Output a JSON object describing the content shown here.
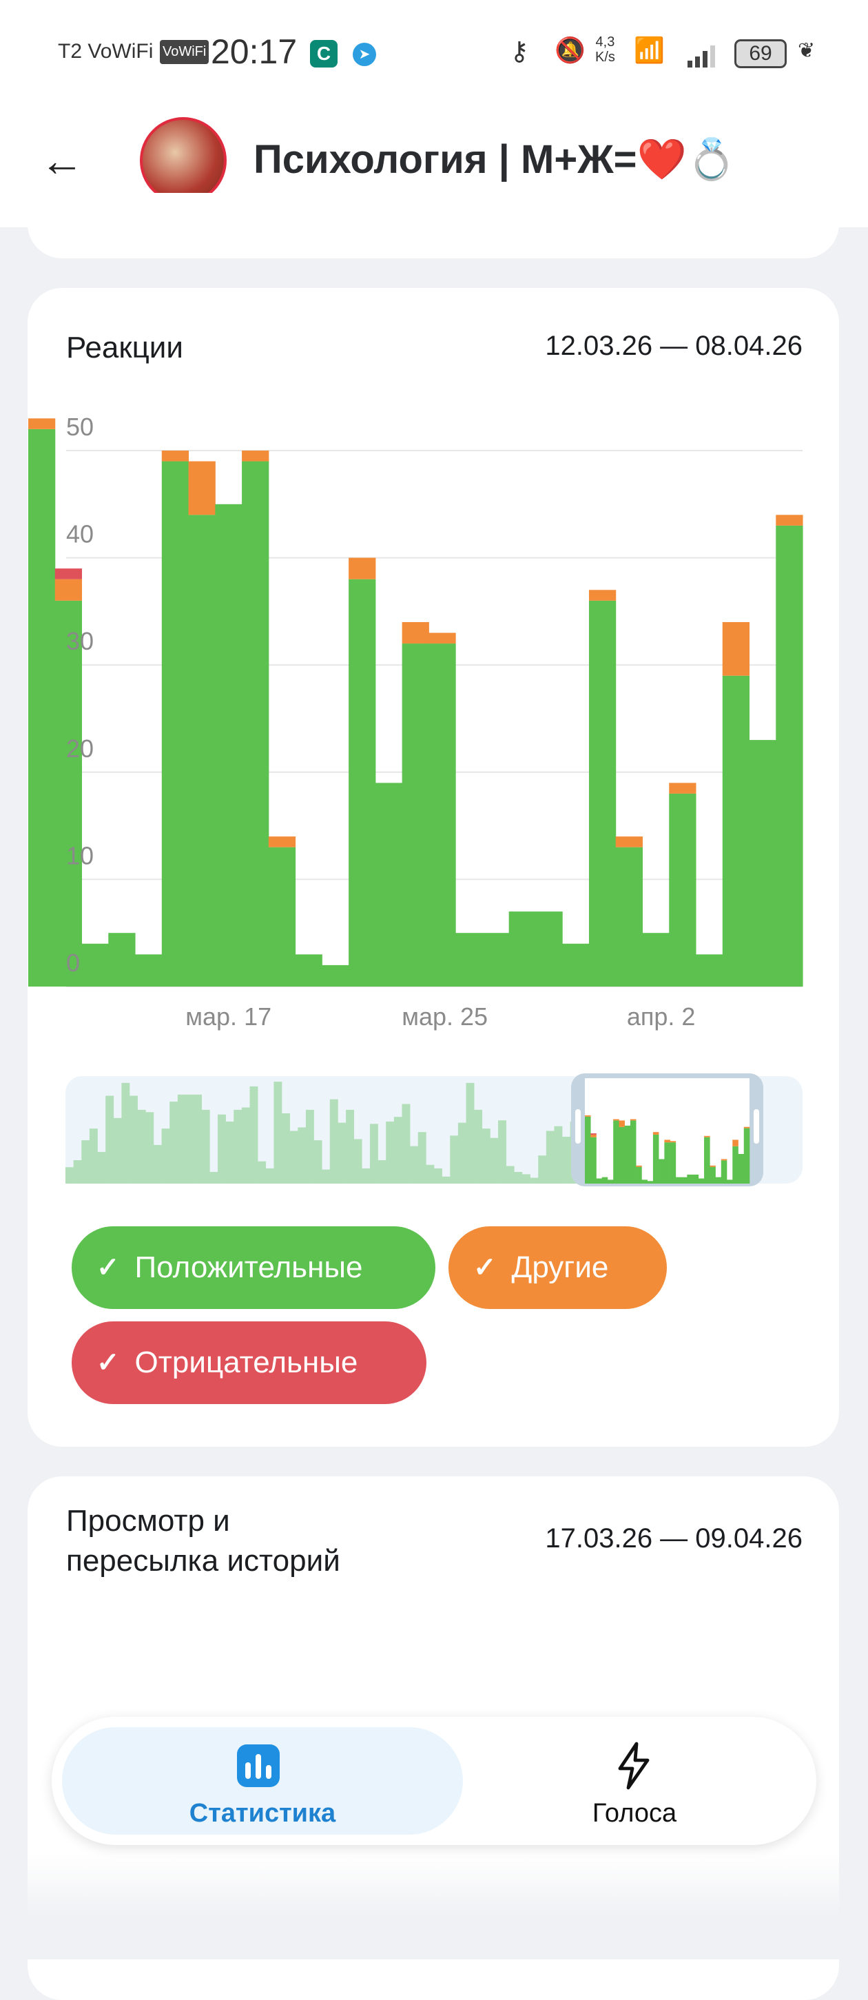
{
  "status_bar": {
    "carrier": "T2 VoWiFi",
    "vowifi_badge": "VoWiFi",
    "time": "20:17",
    "net_speed_top": "4,3",
    "net_speed_bottom": "K/s",
    "battery": "69",
    "icons": [
      "app-c-icon",
      "telegram-icon",
      "key-icon",
      "bell-off-icon",
      "wifi-icon",
      "signal-icon",
      "battery-icon",
      "leaf-icon"
    ]
  },
  "header": {
    "title": "Психология | М+Ж=❤️💍",
    "back_icon": "arrow-left-icon"
  },
  "reactions": {
    "title": "Реакции",
    "date_range": "12.03.26 — 08.04.26",
    "legend": [
      {
        "label": "Положительные",
        "color": "#5cc14e",
        "checked": true
      },
      {
        "label": "Другие",
        "color": "#f28c38",
        "checked": true
      },
      {
        "label": "Отрицательные",
        "color": "#e0525a",
        "checked": true
      }
    ]
  },
  "chart_data": {
    "type": "bar",
    "stacked": true,
    "y_ticks": [
      "0",
      "10",
      "20",
      "30",
      "40",
      "50"
    ],
    "ylim": [
      0,
      53
    ],
    "x_ticks": [
      {
        "label": "мар. 17",
        "index": 7.5
      },
      {
        "label": "мар. 25",
        "index": 15.6
      },
      {
        "label": "апр. 2",
        "index": 23.7
      }
    ],
    "grid": true,
    "series": [
      {
        "name": "Положительные",
        "color": "#5cc14e",
        "values": [
          52,
          36,
          4,
          5,
          3,
          49,
          44,
          45,
          49,
          13,
          3,
          2,
          38,
          19,
          32,
          32,
          5,
          5,
          7,
          7,
          4,
          36,
          13,
          5,
          18,
          3,
          29,
          23,
          43
        ]
      },
      {
        "name": "Другие",
        "color": "#f28c38",
        "values": [
          1,
          2,
          0,
          0,
          0,
          1,
          5,
          0,
          1,
          1,
          0,
          0,
          2,
          0,
          2,
          1,
          0,
          0,
          0,
          0,
          0,
          1,
          1,
          0,
          1,
          0,
          5,
          0,
          1
        ]
      },
      {
        "name": "Отрицательные",
        "color": "#e0525a",
        "values": [
          0,
          1,
          0,
          0,
          0,
          0,
          0,
          0,
          0,
          0,
          0,
          0,
          0,
          0,
          0,
          0,
          0,
          0,
          0,
          0,
          0,
          0,
          0,
          0,
          0,
          0,
          0,
          0,
          0
        ]
      }
    ],
    "overview_totals": [
      14,
      20,
      37,
      47,
      27,
      75,
      56,
      86,
      75,
      63,
      61,
      33,
      47,
      70,
      76,
      76,
      76,
      63,
      10,
      59,
      53,
      63,
      65,
      83,
      19,
      13,
      87,
      60,
      45,
      48,
      63,
      37,
      12,
      72,
      52,
      63,
      38,
      13,
      51,
      20,
      53,
      57,
      68,
      32,
      44,
      16,
      13,
      6,
      41,
      52,
      86,
      63,
      47,
      39,
      54,
      15,
      10,
      8,
      5,
      24,
      45,
      49,
      40,
      53,
      39
    ]
  },
  "stories": {
    "title_line1": "Просмотр и",
    "title_line2": "пересылка историй",
    "date_range": "17.03.26 — 09.04.26"
  },
  "bottom_nav": {
    "items": [
      {
        "label": "Статистика",
        "icon": "bar-chart-icon",
        "active": true
      },
      {
        "label": "Голоса",
        "icon": "lightning-icon",
        "active": false
      }
    ]
  }
}
